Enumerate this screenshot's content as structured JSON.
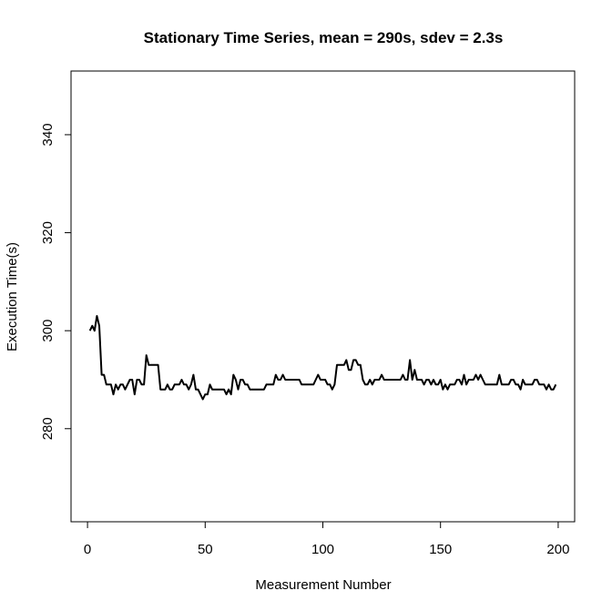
{
  "chart_data": {
    "type": "line",
    "title": "Stationary Time Series, mean = 290s, sdev = 2.3s",
    "xlabel": "Measurement Number",
    "ylabel": "Execution Time(s)",
    "xlim": [
      -7,
      207
    ],
    "ylim": [
      261,
      353
    ],
    "x_ticks": [
      "0",
      "50",
      "100",
      "150",
      "200"
    ],
    "y_ticks": [
      "280",
      "300",
      "320",
      "340"
    ],
    "grid": false,
    "legend": "none",
    "line_color": "#000000",
    "series": [
      {
        "x": [
          1,
          2,
          3,
          4,
          5,
          6,
          7,
          8,
          9,
          10,
          11,
          12,
          13,
          14,
          15,
          16,
          17,
          18,
          19,
          20,
          21,
          22,
          23,
          24,
          25,
          26,
          27,
          28,
          29,
          30,
          31,
          32,
          33,
          34,
          35,
          36,
          37,
          38,
          39,
          40,
          41,
          42,
          43,
          44,
          45,
          46,
          47,
          48,
          49,
          50,
          51,
          52,
          53,
          54,
          55,
          56,
          57,
          58,
          59,
          60,
          61,
          62,
          63,
          64,
          65,
          66,
          67,
          68,
          69,
          70,
          71,
          72,
          73,
          74,
          75,
          76,
          77,
          78,
          79,
          80,
          81,
          82,
          83,
          84,
          85,
          86,
          87,
          88,
          89,
          90,
          91,
          92,
          93,
          94,
          95,
          96,
          97,
          98,
          99,
          100,
          101,
          102,
          103,
          104,
          105,
          106,
          107,
          108,
          109,
          110,
          111,
          112,
          113,
          114,
          115,
          116,
          117,
          118,
          119,
          120,
          121,
          122,
          123,
          124,
          125,
          126,
          127,
          128,
          129,
          130,
          131,
          132,
          133,
          134,
          135,
          136,
          137,
          138,
          139,
          140,
          141,
          142,
          143,
          144,
          145,
          146,
          147,
          148,
          149,
          150,
          151,
          152,
          153,
          154,
          155,
          156,
          157,
          158,
          159,
          160,
          161,
          162,
          163,
          164,
          165,
          166,
          167,
          168,
          169,
          170,
          171,
          172,
          173,
          174,
          175,
          176,
          177,
          178,
          179,
          180,
          181,
          182,
          183,
          184,
          185,
          186,
          187,
          188,
          189,
          190,
          191,
          192,
          193,
          194,
          195,
          196,
          197,
          198,
          199
        ],
        "y": [
          300,
          301,
          300,
          303,
          301,
          291,
          291,
          289,
          289,
          289,
          287,
          289,
          288,
          289,
          289,
          288,
          289,
          290,
          290,
          287,
          290,
          290,
          289,
          289,
          295,
          293,
          293,
          293,
          293,
          293,
          288,
          288,
          288,
          289,
          288,
          288,
          289,
          289,
          289,
          290,
          289,
          289,
          288,
          289,
          291,
          288,
          288,
          287,
          286,
          287,
          287,
          289,
          288,
          288,
          288,
          288,
          288,
          288,
          287,
          288,
          287,
          291,
          290,
          288,
          290,
          290,
          289,
          289,
          288,
          288,
          288,
          288,
          288,
          288,
          288,
          289,
          289,
          289,
          289,
          291,
          290,
          290,
          291,
          290,
          290,
          290,
          290,
          290,
          290,
          290,
          289,
          289,
          289,
          289,
          289,
          289,
          290,
          291,
          290,
          290,
          290,
          289,
          289,
          288,
          289,
          293,
          293,
          293,
          293,
          294,
          292,
          292,
          294,
          294,
          293,
          293,
          290,
          289,
          289,
          290,
          289,
          290,
          290,
          290,
          291,
          290,
          290,
          290,
          290,
          290,
          290,
          290,
          290,
          291,
          290,
          290,
          294,
          290,
          292,
          290,
          290,
          290,
          289,
          290,
          290,
          289,
          290,
          289,
          289,
          290,
          288,
          289,
          288,
          289,
          289,
          289,
          290,
          290,
          289,
          291,
          289,
          290,
          290,
          290,
          291,
          290,
          291,
          290,
          289,
          289,
          289,
          289,
          289,
          289,
          291,
          289,
          289,
          289,
          289,
          290,
          290,
          289,
          289,
          288,
          290,
          289,
          289,
          289,
          289,
          290,
          290,
          289,
          289,
          289,
          288,
          289,
          288,
          288,
          289
        ]
      }
    ]
  }
}
